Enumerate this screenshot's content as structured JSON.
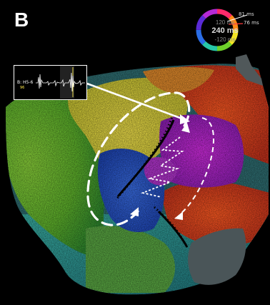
{
  "figure": {
    "panel_label": "B",
    "color_wheel": {
      "top_label": "120 ms",
      "center_label": "240 ms",
      "bottom_label": "-120 ms",
      "tag_a": "81 ms",
      "tag_b": "76 ms"
    },
    "inset": {
      "label": "B: H5-6",
      "value": "96"
    }
  }
}
